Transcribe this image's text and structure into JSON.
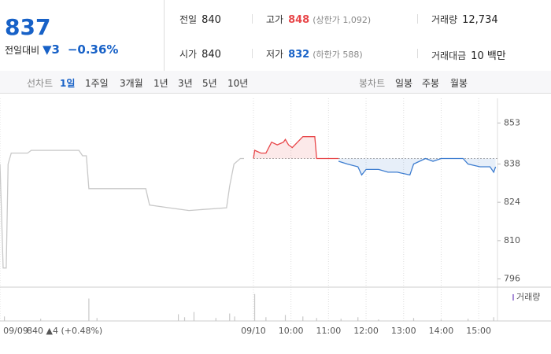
{
  "header": {
    "price": "837",
    "change_label": "전일대비",
    "change_arrow": "▼",
    "change": "3",
    "change_pct": "−0.36%"
  },
  "info": [
    {
      "label": "전일",
      "value": "840"
    },
    {
      "label": "고가",
      "value": "848",
      "note": "(상한가 1,092)"
    },
    {
      "label": "거래량",
      "value": "12,734"
    },
    {
      "label": "시가",
      "value": "840"
    },
    {
      "label": "저가",
      "value": "832",
      "note": "(하한가 588)"
    },
    {
      "label": "거래대금",
      "value": "10 백만"
    }
  ],
  "tabs": {
    "line_label": "선차트",
    "line": [
      "1일",
      "1주일",
      "3개월",
      "1년",
      "3년",
      "5년",
      "10년"
    ],
    "candle_label": "봉차트",
    "candle": [
      "일봉",
      "주봉",
      "월봉"
    ]
  },
  "chart_data": {
    "type": "line",
    "xlim": [
      -405,
      390
    ],
    "ylim": [
      793,
      862
    ],
    "yticks": [
      796,
      810,
      824,
      838,
      853
    ],
    "xticks": [
      {
        "value": -405,
        "label": "09/09"
      },
      {
        "value": 0,
        "label": "09/10"
      },
      {
        "value": 60,
        "label": "10:00"
      },
      {
        "value": 120,
        "label": "11:00"
      },
      {
        "value": 180,
        "label": "12:00"
      },
      {
        "value": 240,
        "label": "13:00"
      },
      {
        "value": 300,
        "label": "14:00"
      },
      {
        "value": 360,
        "label": "15:00"
      }
    ],
    "annotation": "840 ▲4 (+0.48%)",
    "baseline": 840,
    "series": [
      {
        "color": "#c8c8c8",
        "x": [
          -405,
          -400,
          -395,
          -392,
          -387,
          -361,
          -355,
          -279,
          -273,
          -267,
          -263,
          -216,
          -172,
          -166,
          -135,
          -103,
          -43,
          -38,
          -31,
          -21,
          -15
        ],
        "values": [
          838,
          800,
          800,
          838,
          842,
          842,
          843,
          843,
          841,
          841,
          829,
          829,
          829,
          823,
          822,
          821,
          822,
          830,
          838,
          840,
          840
        ]
      },
      {
        "color": "#e8474a",
        "x": [
          0,
          2,
          12,
          20,
          29,
          38,
          48,
          51,
          56,
          62,
          79,
          90,
          98,
          101,
          136
        ],
        "values": [
          840,
          843,
          842,
          842,
          846,
          845,
          846,
          847,
          845,
          844,
          848,
          848,
          848,
          840,
          840
        ]
      },
      {
        "color": "#3d7dd0",
        "x": [
          136,
          150,
          167,
          173,
          180,
          200,
          215,
          230,
          250,
          256,
          275,
          287,
          300,
          335,
          343,
          362,
          378,
          384,
          387
        ],
        "values": [
          839,
          838,
          837,
          834,
          836,
          836,
          835,
          835,
          834,
          838,
          840,
          839,
          840,
          840,
          838,
          837,
          837,
          835,
          837
        ]
      }
    ],
    "volume": {
      "label": "거래량",
      "color": "#c8c8c8",
      "ylim": [
        0,
        40000
      ],
      "x": [
        -398,
        -340,
        -263,
        -250,
        -120,
        -110,
        -95,
        -60,
        -38,
        -30,
        2,
        20,
        51,
        79,
        101,
        140,
        167,
        200,
        256,
        300,
        343,
        384
      ],
      "values": [
        6000,
        3000,
        30000,
        4000,
        9000,
        5000,
        12000,
        4000,
        10000,
        6000,
        36000,
        5000,
        8000,
        6000,
        4000,
        3000,
        5000,
        2000,
        4000,
        2000,
        3000,
        5000
      ]
    }
  }
}
